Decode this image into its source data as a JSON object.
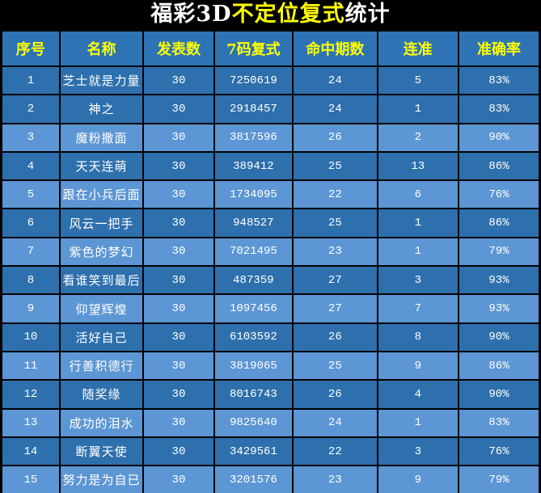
{
  "title": {
    "prefix": "福彩3D",
    "highlight": "不定位复式",
    "suffix": "统计"
  },
  "theme": {
    "title_bg": "#000000",
    "title_text": "#ffffff",
    "title_highlight": "#ffff00",
    "header_bg": "#2e74b5",
    "header_text": "#ffff00",
    "row_dark_bg": "#2e70ad",
    "row_light_bg": "#5c96d4",
    "grid_color": "#000000",
    "cell_text": "#ffffff"
  },
  "table": {
    "columns": [
      {
        "key": "seq",
        "label": "序号"
      },
      {
        "key": "name",
        "label": "名称"
      },
      {
        "key": "published",
        "label": "发表数"
      },
      {
        "key": "compound",
        "label": "7码复式"
      },
      {
        "key": "hits",
        "label": "命中期数"
      },
      {
        "key": "streak",
        "label": "连准"
      },
      {
        "key": "accuracy",
        "label": "准确率"
      }
    ],
    "rows": [
      {
        "seq": "1",
        "name": "芝士就是力量",
        "published": "30",
        "compound": "7250619",
        "hits": "24",
        "streak": "5",
        "accuracy": "83%"
      },
      {
        "seq": "2",
        "name": "神之",
        "published": "30",
        "compound": "2918457",
        "hits": "24",
        "streak": "1",
        "accuracy": "83%"
      },
      {
        "seq": "3",
        "name": "魔粉撒面",
        "published": "30",
        "compound": "3817596",
        "hits": "26",
        "streak": "2",
        "accuracy": "90%"
      },
      {
        "seq": "4",
        "name": "天天连萌",
        "published": "30",
        "compound": "389412",
        "hits": "25",
        "streak": "13",
        "accuracy": "86%"
      },
      {
        "seq": "5",
        "name": "跟在小兵后面",
        "published": "30",
        "compound": "1734095",
        "hits": "22",
        "streak": "6",
        "accuracy": "76%"
      },
      {
        "seq": "6",
        "name": "风云一把手",
        "published": "30",
        "compound": "948527",
        "hits": "25",
        "streak": "1",
        "accuracy": "86%"
      },
      {
        "seq": "7",
        "name": "紫色的梦幻",
        "published": "30",
        "compound": "7021495",
        "hits": "23",
        "streak": "1",
        "accuracy": "79%"
      },
      {
        "seq": "8",
        "name": "看谁笑到最后",
        "published": "30",
        "compound": "487359",
        "hits": "27",
        "streak": "3",
        "accuracy": "93%"
      },
      {
        "seq": "9",
        "name": "仰望辉煌",
        "published": "30",
        "compound": "1097456",
        "hits": "27",
        "streak": "7",
        "accuracy": "93%"
      },
      {
        "seq": "10",
        "name": "活好自己",
        "published": "30",
        "compound": "6103592",
        "hits": "26",
        "streak": "8",
        "accuracy": "90%"
      },
      {
        "seq": "11",
        "name": "行善积德行",
        "published": "30",
        "compound": "3819065",
        "hits": "25",
        "streak": "9",
        "accuracy": "86%"
      },
      {
        "seq": "12",
        "name": "随奖缘",
        "published": "30",
        "compound": "8016743",
        "hits": "26",
        "streak": "4",
        "accuracy": "90%"
      },
      {
        "seq": "13",
        "name": "成功的泪水",
        "published": "30",
        "compound": "9825640",
        "hits": "24",
        "streak": "1",
        "accuracy": "83%"
      },
      {
        "seq": "14",
        "name": "断翼天使",
        "published": "30",
        "compound": "3429561",
        "hits": "22",
        "streak": "3",
        "accuracy": "76%"
      },
      {
        "seq": "15",
        "name": "努力是为自已",
        "published": "30",
        "compound": "3201576",
        "hits": "23",
        "streak": "9",
        "accuracy": "79%"
      }
    ]
  }
}
